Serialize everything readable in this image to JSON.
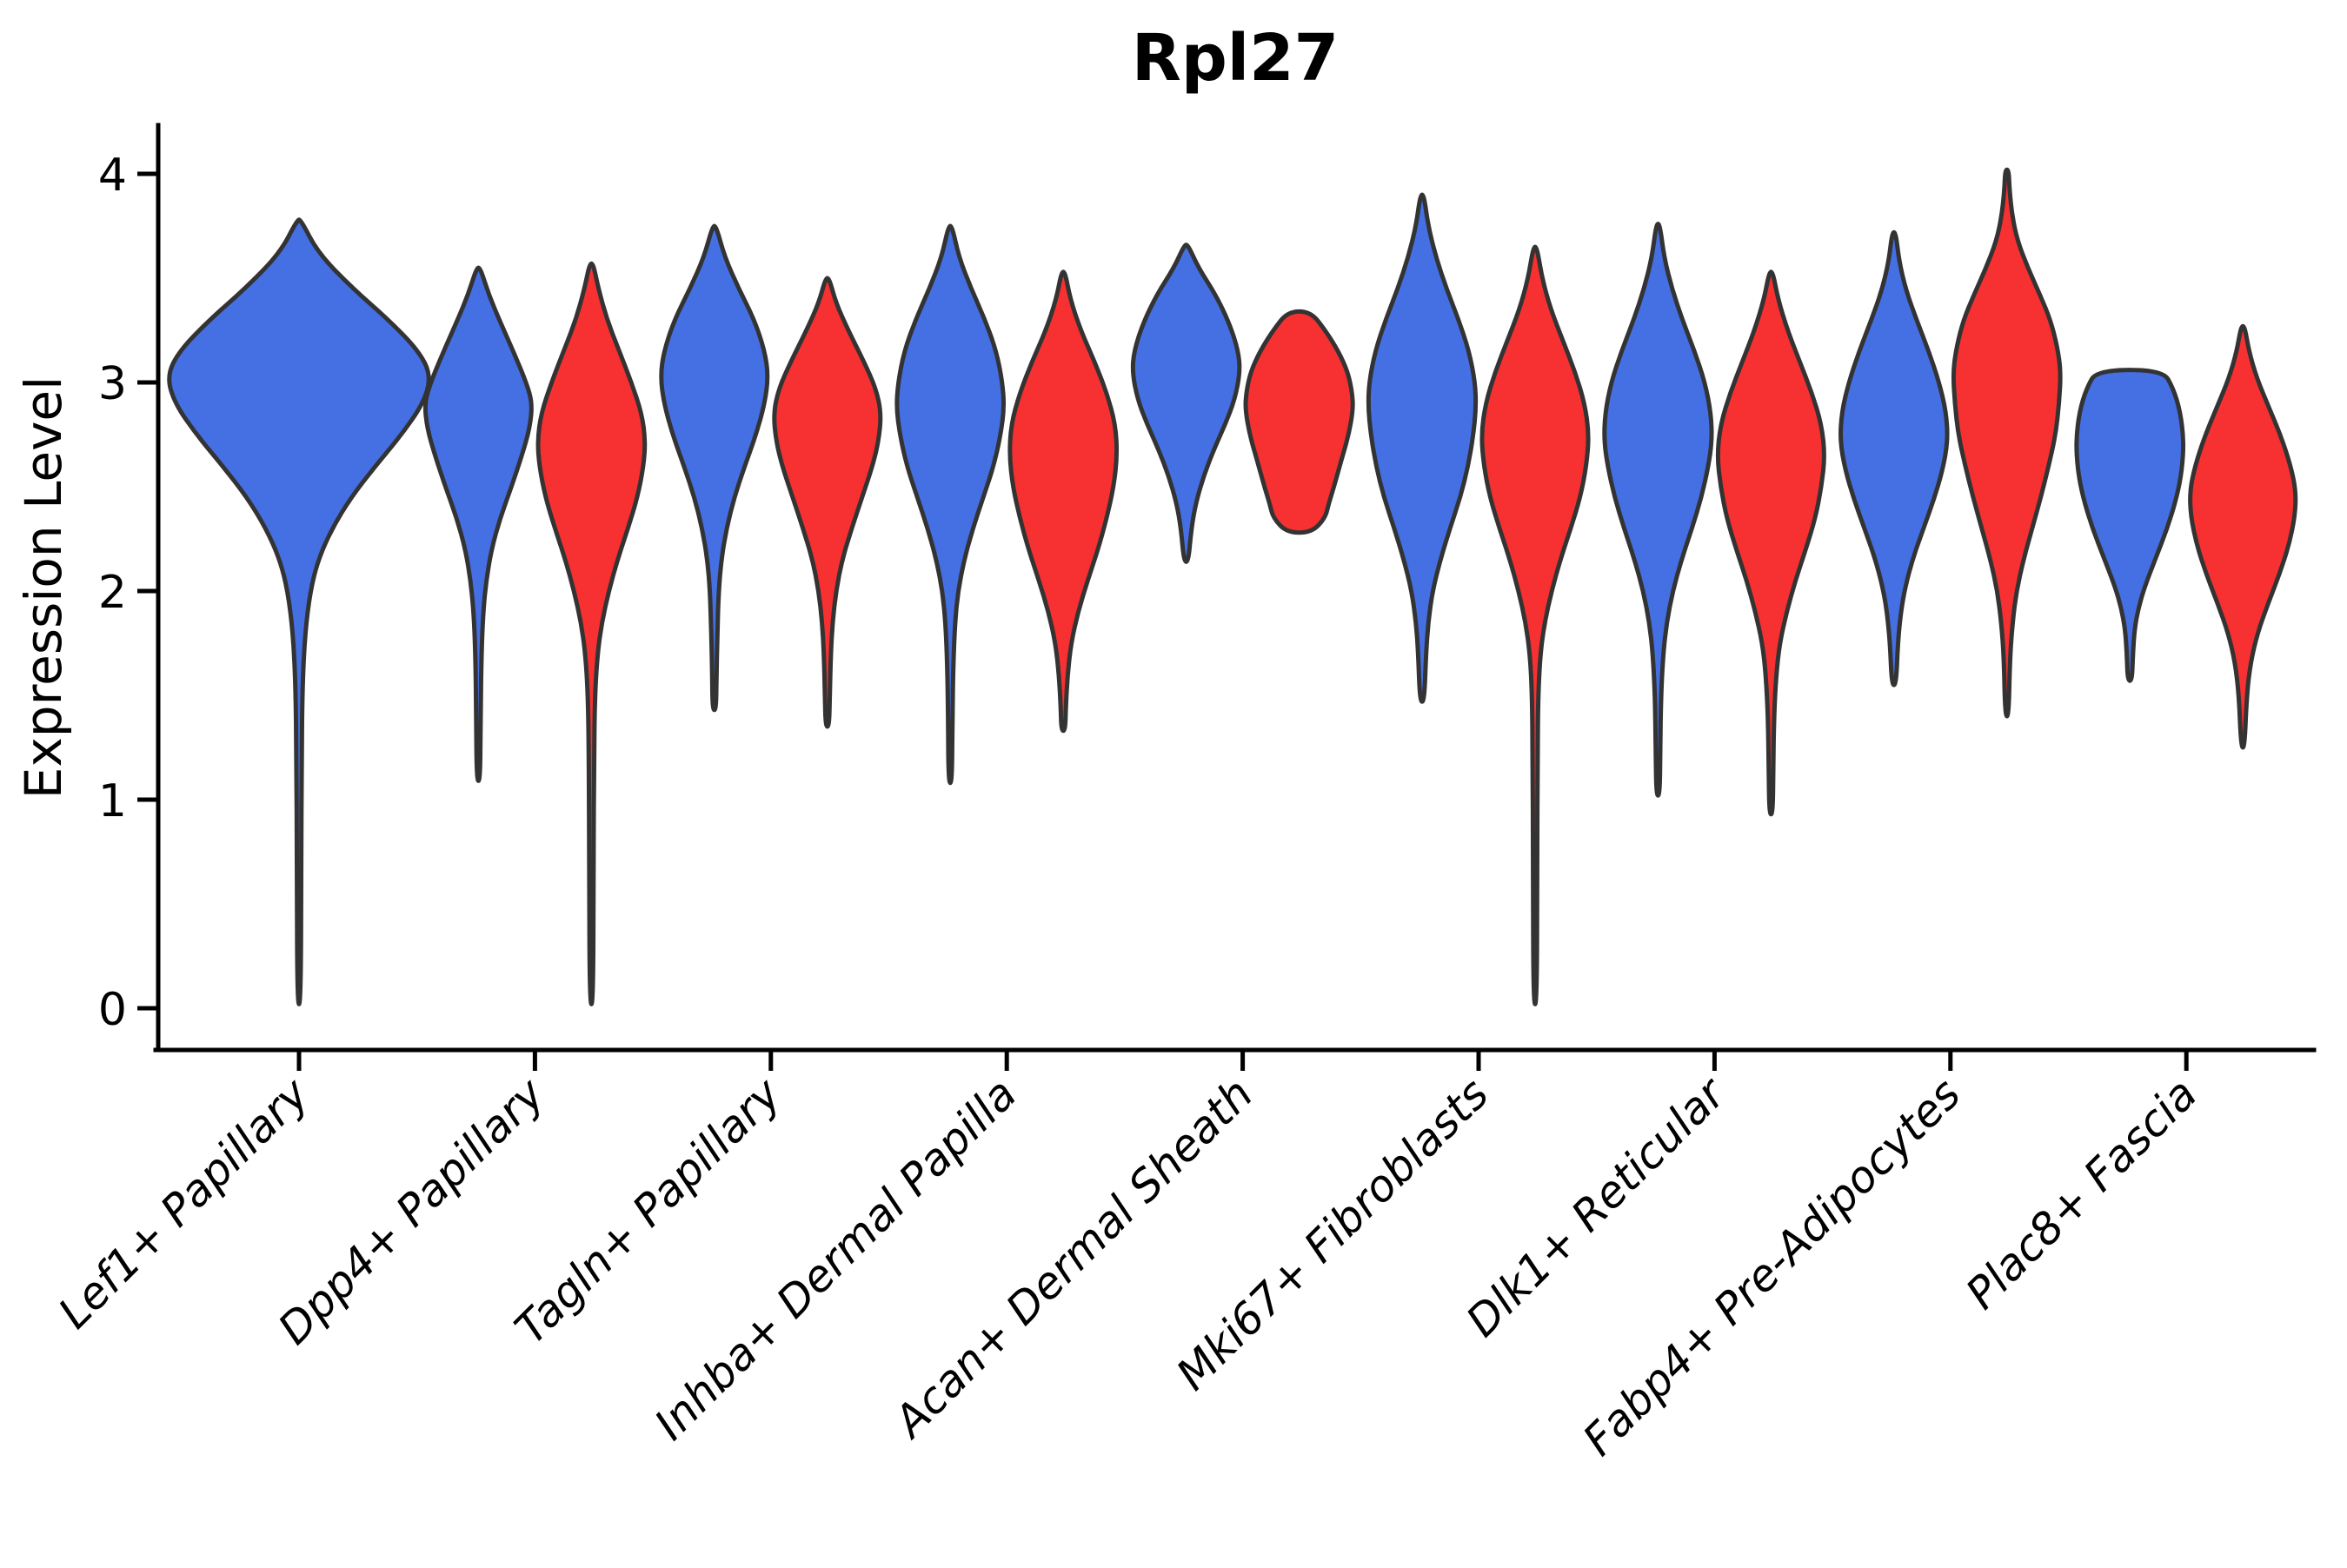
{
  "title": "Rpl27",
  "chart_data": {
    "type": "violin",
    "title": "Rpl27",
    "xlabel": "",
    "ylabel": "Expression Level",
    "ylim": [
      0,
      4
    ],
    "yticks": [
      "4",
      "3",
      "2",
      "1",
      "0"
    ],
    "ytick_values": [
      4,
      3,
      2,
      1,
      0
    ],
    "grid": "off",
    "legend": "none",
    "categories": [
      "Lef1+ Papillary",
      "Dpp4+ Papillary",
      "Tagln+ Papillary",
      "Inhba+ Dermal Papilla",
      "Acan+ Dermal Sheath",
      "Mki67+ Fibroblasts",
      "Dlk1+ Reticular",
      "Fabp4+ Pre-Adipocytes",
      "Plac8+ Fascia"
    ],
    "groups": [
      {
        "id": "group1",
        "color": "#4470E4"
      },
      {
        "id": "group2",
        "color": "#F73131"
      }
    ],
    "outline_color": "#333333",
    "violins": [
      {
        "category": 0,
        "group": 0,
        "side": "center",
        "min": 0.02,
        "max": 3.78,
        "mode": 3.03,
        "profile": [
          [
            3.78,
            2
          ],
          [
            3.62,
            22
          ],
          [
            3.45,
            62
          ],
          [
            3.3,
            103
          ],
          [
            3.15,
            138
          ],
          [
            3.03,
            152
          ],
          [
            2.9,
            143
          ],
          [
            2.75,
            118
          ],
          [
            2.6,
            88
          ],
          [
            2.45,
            60
          ],
          [
            2.3,
            38
          ],
          [
            2.15,
            22
          ],
          [
            2.0,
            13
          ],
          [
            1.8,
            7
          ],
          [
            1.55,
            4
          ],
          [
            1.2,
            3
          ],
          [
            0.7,
            2.5
          ],
          [
            0.02,
            2
          ]
        ]
      },
      {
        "category": 1,
        "group": 0,
        "side": "left",
        "min": 1.09,
        "max": 3.55,
        "mode": 2.9,
        "profile": [
          [
            3.55,
            2
          ],
          [
            3.42,
            12
          ],
          [
            3.3,
            24
          ],
          [
            3.15,
            40
          ],
          [
            3.0,
            55
          ],
          [
            2.9,
            62
          ],
          [
            2.78,
            59
          ],
          [
            2.65,
            50
          ],
          [
            2.5,
            38
          ],
          [
            2.35,
            25
          ],
          [
            2.2,
            15
          ],
          [
            2.05,
            9
          ],
          [
            1.9,
            5.5
          ],
          [
            1.7,
            3.5
          ],
          [
            1.4,
            2.5
          ],
          [
            1.09,
            2
          ]
        ]
      },
      {
        "category": 1,
        "group": 1,
        "side": "right",
        "min": 0.02,
        "max": 3.57,
        "mode": 2.72,
        "profile": [
          [
            3.57,
            2
          ],
          [
            3.45,
            8
          ],
          [
            3.3,
            18
          ],
          [
            3.15,
            32
          ],
          [
            3.0,
            46
          ],
          [
            2.85,
            58
          ],
          [
            2.72,
            62
          ],
          [
            2.6,
            60
          ],
          [
            2.45,
            53
          ],
          [
            2.3,
            42
          ],
          [
            2.15,
            30
          ],
          [
            2.0,
            20
          ],
          [
            1.85,
            12
          ],
          [
            1.7,
            7
          ],
          [
            1.5,
            4
          ],
          [
            1.2,
            3
          ],
          [
            0.7,
            2.5
          ],
          [
            0.02,
            2
          ]
        ]
      },
      {
        "category": 2,
        "group": 0,
        "side": "left",
        "min": 1.43,
        "max": 3.75,
        "mode": 3.03,
        "profile": [
          [
            3.75,
            2
          ],
          [
            3.6,
            12
          ],
          [
            3.45,
            28
          ],
          [
            3.3,
            46
          ],
          [
            3.15,
            58
          ],
          [
            3.03,
            62
          ],
          [
            2.9,
            58
          ],
          [
            2.75,
            48
          ],
          [
            2.6,
            35
          ],
          [
            2.45,
            23
          ],
          [
            2.3,
            14
          ],
          [
            2.15,
            8
          ],
          [
            2.0,
            5
          ],
          [
            1.8,
            3.5
          ],
          [
            1.6,
            2.5
          ],
          [
            1.43,
            2
          ]
        ]
      },
      {
        "category": 2,
        "group": 1,
        "side": "right",
        "min": 1.35,
        "max": 3.5,
        "mode": 2.85,
        "profile": [
          [
            3.5,
            2
          ],
          [
            3.38,
            10
          ],
          [
            3.25,
            24
          ],
          [
            3.1,
            42
          ],
          [
            2.97,
            56
          ],
          [
            2.85,
            62
          ],
          [
            2.72,
            59
          ],
          [
            2.6,
            52
          ],
          [
            2.45,
            40
          ],
          [
            2.3,
            28
          ],
          [
            2.15,
            17
          ],
          [
            2.0,
            10
          ],
          [
            1.85,
            6
          ],
          [
            1.7,
            4
          ],
          [
            1.5,
            2.8
          ],
          [
            1.35,
            2
          ]
        ]
      },
      {
        "category": 3,
        "group": 0,
        "side": "left",
        "min": 1.08,
        "max": 3.75,
        "mode": 2.88,
        "profile": [
          [
            3.75,
            2
          ],
          [
            3.6,
            10
          ],
          [
            3.45,
            24
          ],
          [
            3.3,
            40
          ],
          [
            3.15,
            53
          ],
          [
            3.0,
            60
          ],
          [
            2.88,
            62
          ],
          [
            2.75,
            58
          ],
          [
            2.6,
            50
          ],
          [
            2.45,
            38
          ],
          [
            2.3,
            26
          ],
          [
            2.15,
            16
          ],
          [
            2.0,
            9
          ],
          [
            1.85,
            5.5
          ],
          [
            1.65,
            3.5
          ],
          [
            1.4,
            2.5
          ],
          [
            1.08,
            2
          ]
        ]
      },
      {
        "category": 3,
        "group": 1,
        "side": "right",
        "min": 1.33,
        "max": 3.53,
        "mode": 2.65,
        "profile": [
          [
            3.53,
            2
          ],
          [
            3.4,
            8
          ],
          [
            3.25,
            20
          ],
          [
            3.1,
            36
          ],
          [
            2.95,
            50
          ],
          [
            2.8,
            60
          ],
          [
            2.65,
            62
          ],
          [
            2.5,
            58
          ],
          [
            2.35,
            50
          ],
          [
            2.2,
            40
          ],
          [
            2.05,
            28
          ],
          [
            1.9,
            17
          ],
          [
            1.75,
            9
          ],
          [
            1.6,
            5
          ],
          [
            1.45,
            3
          ],
          [
            1.33,
            2.2
          ]
        ]
      },
      {
        "category": 4,
        "group": 0,
        "side": "left",
        "min": 2.14,
        "max": 3.66,
        "mode": 3.05,
        "profile": [
          [
            3.66,
            2
          ],
          [
            3.55,
            14
          ],
          [
            3.42,
            34
          ],
          [
            3.28,
            50
          ],
          [
            3.15,
            60
          ],
          [
            3.05,
            62
          ],
          [
            2.92,
            56
          ],
          [
            2.8,
            45
          ],
          [
            2.68,
            32
          ],
          [
            2.55,
            20
          ],
          [
            2.42,
            11
          ],
          [
            2.3,
            6
          ],
          [
            2.14,
            2.5
          ]
        ]
      },
      {
        "category": 4,
        "group": 1,
        "side": "right",
        "min": 2.28,
        "max": 3.34,
        "mode": 2.87,
        "flat_top": true,
        "flat_bottom": true,
        "profile": [
          [
            3.34,
            13
          ],
          [
            3.25,
            30
          ],
          [
            3.15,
            45
          ],
          [
            3.05,
            56
          ],
          [
            2.95,
            61
          ],
          [
            2.87,
            62
          ],
          [
            2.75,
            57
          ],
          [
            2.62,
            48
          ],
          [
            2.5,
            40
          ],
          [
            2.42,
            34
          ],
          [
            2.35,
            30
          ],
          [
            2.28,
            14
          ]
        ]
      },
      {
        "category": 5,
        "group": 0,
        "side": "left",
        "min": 1.47,
        "max": 3.9,
        "mode": 2.88,
        "profile": [
          [
            3.9,
            2
          ],
          [
            3.75,
            7
          ],
          [
            3.6,
            16
          ],
          [
            3.45,
            28
          ],
          [
            3.3,
            42
          ],
          [
            3.15,
            54
          ],
          [
            3.0,
            61
          ],
          [
            2.88,
            62
          ],
          [
            2.75,
            59
          ],
          [
            2.6,
            53
          ],
          [
            2.45,
            44
          ],
          [
            2.3,
            32
          ],
          [
            2.15,
            21
          ],
          [
            2.0,
            12
          ],
          [
            1.85,
            7
          ],
          [
            1.7,
            4.5
          ],
          [
            1.47,
            2.5
          ]
        ]
      },
      {
        "category": 5,
        "group": 1,
        "side": "right",
        "min": 0.02,
        "max": 3.65,
        "mode": 2.75,
        "profile": [
          [
            3.65,
            2
          ],
          [
            3.5,
            8
          ],
          [
            3.35,
            18
          ],
          [
            3.2,
            32
          ],
          [
            3.05,
            46
          ],
          [
            2.9,
            57
          ],
          [
            2.75,
            62
          ],
          [
            2.6,
            59
          ],
          [
            2.45,
            52
          ],
          [
            2.3,
            41
          ],
          [
            2.15,
            29
          ],
          [
            2.0,
            19
          ],
          [
            1.85,
            11
          ],
          [
            1.7,
            6
          ],
          [
            1.5,
            3.5
          ],
          [
            1.2,
            2.8
          ],
          [
            0.7,
            2.4
          ],
          [
            0.02,
            2
          ]
        ]
      },
      {
        "category": 6,
        "group": 0,
        "side": "left",
        "min": 1.02,
        "max": 3.76,
        "mode": 2.72,
        "profile": [
          [
            3.76,
            2
          ],
          [
            3.6,
            7
          ],
          [
            3.45,
            16
          ],
          [
            3.3,
            28
          ],
          [
            3.15,
            42
          ],
          [
            3.0,
            54
          ],
          [
            2.85,
            61
          ],
          [
            2.72,
            62
          ],
          [
            2.6,
            58
          ],
          [
            2.45,
            50
          ],
          [
            2.3,
            39
          ],
          [
            2.15,
            27
          ],
          [
            2.0,
            17
          ],
          [
            1.85,
            10
          ],
          [
            1.7,
            6
          ],
          [
            1.5,
            3.5
          ],
          [
            1.25,
            2.6
          ],
          [
            1.02,
            2
          ]
        ]
      },
      {
        "category": 6,
        "group": 1,
        "side": "right",
        "min": 0.93,
        "max": 3.53,
        "mode": 2.65,
        "profile": [
          [
            3.53,
            2
          ],
          [
            3.4,
            8
          ],
          [
            3.25,
            19
          ],
          [
            3.1,
            33
          ],
          [
            2.95,
            47
          ],
          [
            2.8,
            58
          ],
          [
            2.65,
            62
          ],
          [
            2.5,
            58
          ],
          [
            2.35,
            51
          ],
          [
            2.2,
            40
          ],
          [
            2.05,
            28
          ],
          [
            1.9,
            18
          ],
          [
            1.75,
            10
          ],
          [
            1.6,
            6
          ],
          [
            1.4,
            3.5
          ],
          [
            1.15,
            2.6
          ],
          [
            0.93,
            2
          ]
        ]
      },
      {
        "category": 7,
        "group": 0,
        "side": "left",
        "min": 1.55,
        "max": 3.72,
        "mode": 2.72,
        "profile": [
          [
            3.72,
            2
          ],
          [
            3.58,
            6
          ],
          [
            3.44,
            14
          ],
          [
            3.3,
            26
          ],
          [
            3.15,
            40
          ],
          [
            3.0,
            52
          ],
          [
            2.86,
            60
          ],
          [
            2.72,
            62
          ],
          [
            2.58,
            56
          ],
          [
            2.44,
            46
          ],
          [
            2.3,
            34
          ],
          [
            2.16,
            22
          ],
          [
            2.02,
            13
          ],
          [
            1.9,
            8
          ],
          [
            1.75,
            4.5
          ],
          [
            1.55,
            2.5
          ]
        ]
      },
      {
        "category": 7,
        "group": 1,
        "side": "right",
        "min": 1.4,
        "max": 4.02,
        "mode": 3.05,
        "profile": [
          [
            4.02,
            2
          ],
          [
            3.92,
            3
          ],
          [
            3.8,
            6
          ],
          [
            3.68,
            12
          ],
          [
            3.55,
            24
          ],
          [
            3.42,
            38
          ],
          [
            3.3,
            50
          ],
          [
            3.17,
            58
          ],
          [
            3.05,
            62
          ],
          [
            2.9,
            60
          ],
          [
            2.75,
            56
          ],
          [
            2.6,
            48
          ],
          [
            2.45,
            39
          ],
          [
            2.3,
            29
          ],
          [
            2.15,
            19
          ],
          [
            2.0,
            11
          ],
          [
            1.85,
            6.5
          ],
          [
            1.68,
            3.5
          ],
          [
            1.4,
            2
          ]
        ]
      },
      {
        "category": 8,
        "group": 0,
        "side": "left",
        "min": 1.57,
        "max": 3.06,
        "mode": 2.72,
        "flat_top": true,
        "profile": [
          [
            3.06,
            38
          ],
          [
            2.97,
            50
          ],
          [
            2.86,
            58
          ],
          [
            2.72,
            62
          ],
          [
            2.58,
            60
          ],
          [
            2.45,
            54
          ],
          [
            2.3,
            43
          ],
          [
            2.15,
            29
          ],
          [
            2.02,
            17
          ],
          [
            1.92,
            10
          ],
          [
            1.82,
            5.5
          ],
          [
            1.7,
            3.5
          ],
          [
            1.57,
            2.5
          ]
        ]
      },
      {
        "category": 8,
        "group": 1,
        "side": "right",
        "min": 1.25,
        "max": 3.27,
        "mode": 2.48,
        "profile": [
          [
            3.27,
            2
          ],
          [
            3.15,
            7
          ],
          [
            3.02,
            16
          ],
          [
            2.88,
            30
          ],
          [
            2.74,
            44
          ],
          [
            2.6,
            55
          ],
          [
            2.48,
            61
          ],
          [
            2.36,
            60
          ],
          [
            2.22,
            53
          ],
          [
            2.08,
            42
          ],
          [
            1.94,
            29
          ],
          [
            1.8,
            17
          ],
          [
            1.66,
            9
          ],
          [
            1.5,
            4.5
          ],
          [
            1.25,
            2
          ]
        ]
      }
    ]
  }
}
